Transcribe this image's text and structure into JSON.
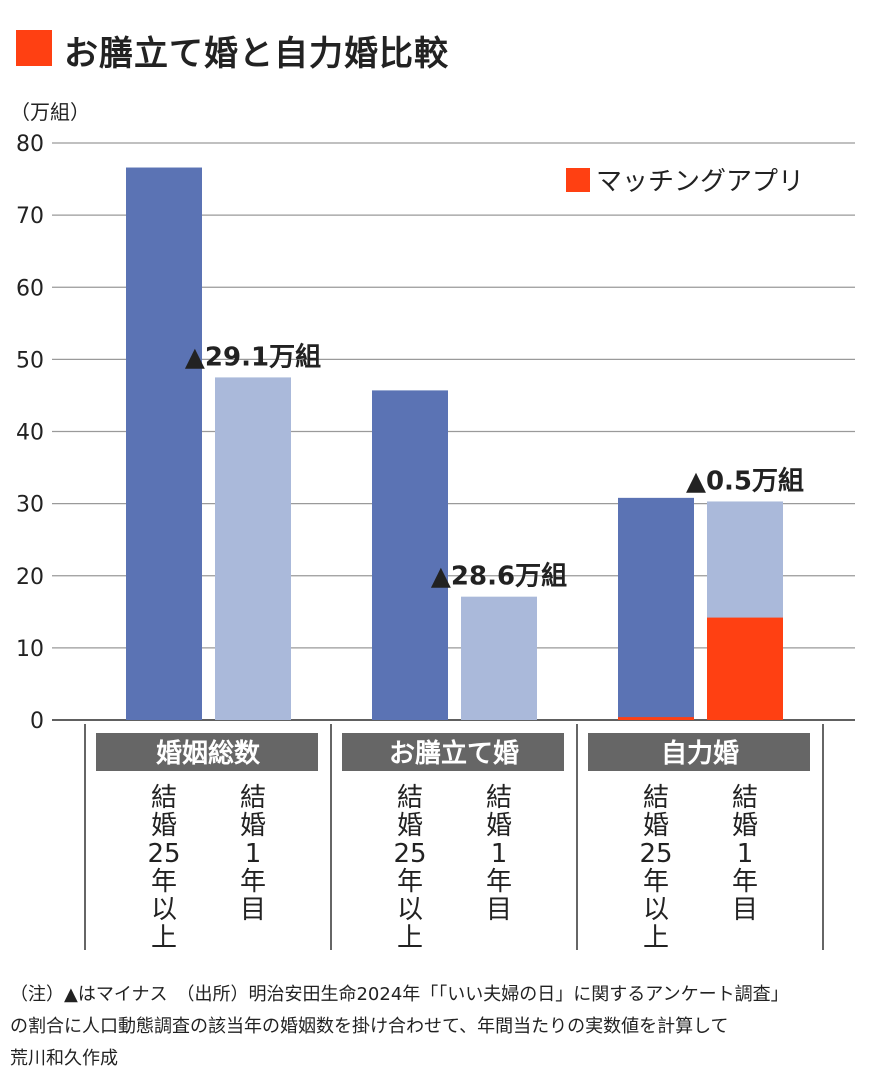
{
  "colors": {
    "accent": "#ff4012",
    "dark_bar": "#5b73b4",
    "light_bar": "#aab9da",
    "label_box": "#666666"
  },
  "title": "お膳立て婚と自力婚比較",
  "chart_data": {
    "type": "bar",
    "title": "お膳立て婚と自力婚比較",
    "ylabel": "（万組）",
    "ylim": [
      0,
      80
    ],
    "yticks": [
      0,
      10,
      20,
      30,
      40,
      50,
      60,
      70,
      80
    ],
    "grid": true,
    "legend": {
      "placement": "top-right",
      "entries": [
        "マッチングアプリ"
      ]
    },
    "groups": [
      {
        "label": "婚姻総数",
        "bars": [
          {
            "label": "結婚25年以上",
            "value": 76.6,
            "app": 0
          },
          {
            "label": "結婚1年目",
            "value": 47.5,
            "app": 0,
            "annotation": "▲29.1万組"
          }
        ]
      },
      {
        "label": "お膳立て婚",
        "bars": [
          {
            "label": "結婚25年以上",
            "value": 45.7,
            "app": 0
          },
          {
            "label": "結婚1年目",
            "value": 17.1,
            "app": 0,
            "annotation": "▲28.6万組"
          }
        ]
      },
      {
        "label": "自力婚",
        "bars": [
          {
            "label": "結婚25年以上",
            "value": 30.8,
            "app": 0.4
          },
          {
            "label": "結婚1年目",
            "value": 30.3,
            "app": 14.2,
            "annotation": "▲0.5万組"
          }
        ]
      }
    ]
  },
  "notes": [
    "（注）▲はマイナス　（出所）明治安田生命2024年「「いい夫婦の日」に関するアンケート調査」",
    "の割合に人口動態調査の該当年の婚姻数を掛け合わせて、年間当たりの実数値を計算して",
    "荒川和久作成"
  ]
}
